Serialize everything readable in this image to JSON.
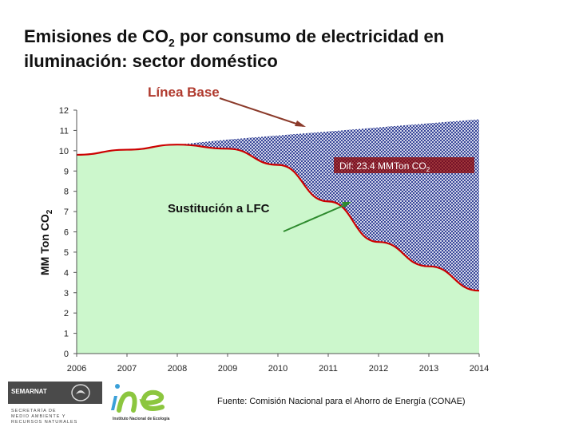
{
  "title_line1": "Emisiones de CO",
  "title_sub": "2",
  "title_line1_end": " por consumo de electricidad en",
  "title_line2": "iluminación: sector doméstico",
  "baseline_label": "Línea Base",
  "substitution_label": "Sustitución a LFC",
  "diff_label": "Dif: 23.4 MMTon CO",
  "diff_label_sub": "2",
  "source": "Fuente: Comisión Nacional para el Ahorro de Energía (CONAE)",
  "logos": {
    "semarnat_name": "SEMARNAT",
    "semarnat_sub": [
      "SECRETARÍA DE",
      "MEDIO AMBIENTE Y",
      "RECURSOS NATURALES"
    ],
    "ine_caption": "Instituto Nacional de Ecología"
  },
  "colors": {
    "fill_green": "#ccf7cc",
    "hatch_blue": "#1a2a8a",
    "line_red": "#cc0000",
    "arrow_brown": "#8b3a2a",
    "arrow_green": "#2e8b2e"
  },
  "chart_data": {
    "type": "area",
    "x": [
      2006,
      2007,
      2008,
      2009,
      2010,
      2011,
      2012,
      2013,
      2014
    ],
    "series": [
      {
        "name": "Línea Base",
        "values": [
          9.8,
          10.05,
          10.3,
          10.55,
          10.75,
          10.95,
          11.15,
          11.35,
          11.55
        ]
      },
      {
        "name": "Sustitución a LFC",
        "values": [
          9.8,
          10.05,
          10.3,
          10.1,
          9.3,
          7.5,
          5.5,
          4.3,
          3.1
        ]
      }
    ],
    "ylabel": "MM Ton CO2",
    "ylim": [
      0,
      12
    ],
    "yticks": [
      0,
      1,
      2,
      3,
      4,
      5,
      6,
      7,
      8,
      9,
      10,
      11,
      12
    ],
    "xticks": [
      "2006",
      "2007",
      "2008",
      "2009",
      "2010",
      "2011",
      "2012",
      "2013",
      "2014"
    ],
    "grid": false
  }
}
